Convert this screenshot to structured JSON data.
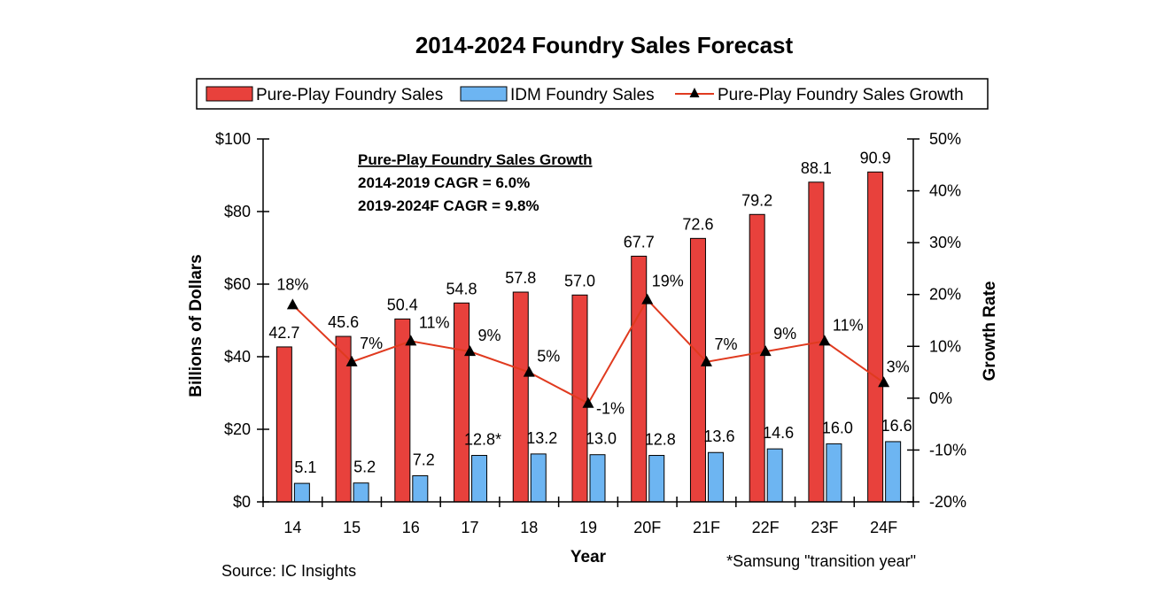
{
  "chart_data": {
    "type": "bar",
    "title": "2014-2024 Foundry Sales Forecast",
    "categories": [
      "14",
      "15",
      "16",
      "17",
      "18",
      "19",
      "20F",
      "21F",
      "22F",
      "23F",
      "24F"
    ],
    "series": [
      {
        "name": "Pure-Play Foundry Sales",
        "type": "bar",
        "axis": "left",
        "color": "#e8413c",
        "values": [
          42.7,
          45.6,
          50.4,
          54.8,
          57.8,
          57.0,
          67.7,
          72.6,
          79.2,
          88.1,
          90.9
        ],
        "labels": [
          "42.7",
          "45.6",
          "50.4",
          "54.8",
          "57.8",
          "57.0",
          "67.7",
          "72.6",
          "79.2",
          "88.1",
          "90.9"
        ]
      },
      {
        "name": "IDM Foundry Sales",
        "type": "bar",
        "axis": "left",
        "color": "#6db5f2",
        "values": [
          5.1,
          5.2,
          7.2,
          12.8,
          13.2,
          13.0,
          12.8,
          13.6,
          14.6,
          16.0,
          16.6
        ],
        "labels": [
          "5.1",
          "5.2",
          "7.2",
          "12.8*",
          "13.2",
          "13.0",
          "12.8",
          "13.6",
          "14.6",
          "16.0",
          "16.6"
        ]
      },
      {
        "name": "Pure-Play Foundry Sales Growth",
        "type": "line",
        "axis": "right",
        "color": "#e03a1f",
        "values": [
          18,
          7,
          11,
          9,
          5,
          -1,
          19,
          7,
          9,
          11,
          3
        ],
        "labels": [
          "18%",
          "7%",
          "11%",
          "9%",
          "5%",
          "-1%",
          "19%",
          "7%",
          "9%",
          "11%",
          "3%"
        ]
      }
    ],
    "xlabel": "Year",
    "ylabel": "Billions of Dollars",
    "y2label": "Growth Rate",
    "ylim": [
      0,
      100
    ],
    "y2lim": [
      -20,
      50
    ],
    "yticks": [
      "$0",
      "$20",
      "$40",
      "$60",
      "$80",
      "$100"
    ],
    "y2ticks": [
      "-20%",
      "-10%",
      "0%",
      "10%",
      "20%",
      "30%",
      "40%",
      "50%"
    ],
    "legend_position": "top",
    "grid": false,
    "annotations": {
      "heading": "Pure-Play Foundry Sales Growth",
      "lines": [
        "2014-2019 CAGR = 6.0%",
        "2019-2024F CAGR = 9.8%"
      ]
    },
    "source": "Source: IC Insights",
    "footnote": "*Samsung \"transition year\""
  }
}
